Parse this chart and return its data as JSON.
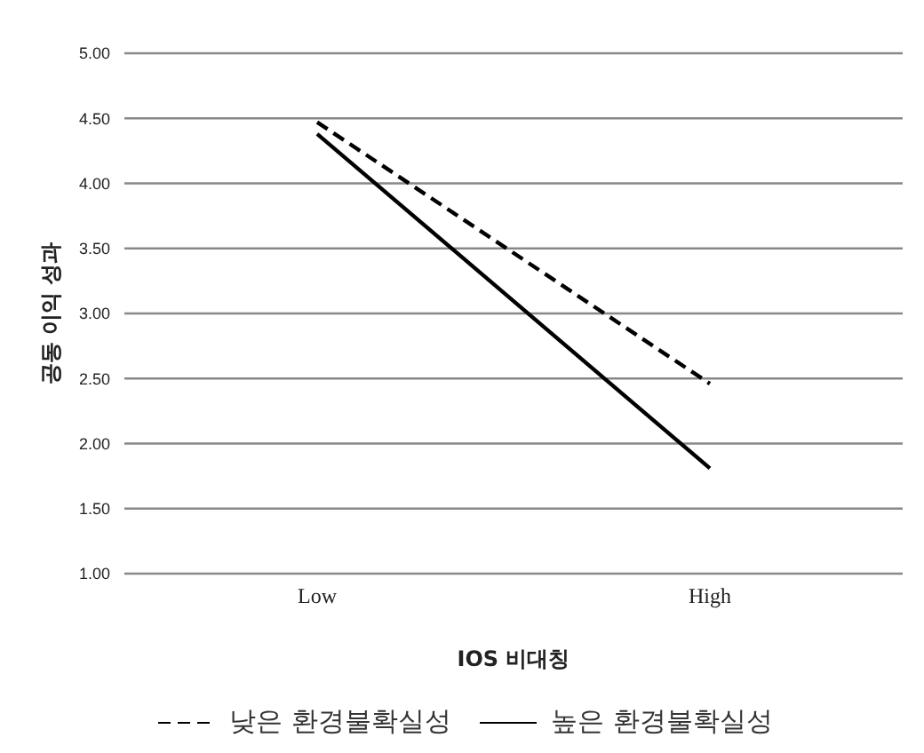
{
  "chart_data": {
    "type": "line",
    "xlabel": "IOS 비대칭",
    "ylabel": "공동 이익 성과",
    "categories": [
      "Low",
      "High"
    ],
    "series": [
      {
        "name": "낮은 환경불확실성",
        "color": "#000000",
        "line_style": "dashed",
        "values": [
          4.47,
          2.46
        ]
      },
      {
        "name": "높은 환경불확실성",
        "color": "#000000",
        "line_style": "solid",
        "values": [
          4.38,
          1.81
        ]
      }
    ],
    "ylim": [
      1.0,
      5.0
    ],
    "yticks": [
      {
        "value": 1.0,
        "label": "1.00"
      },
      {
        "value": 1.5,
        "label": "1.50"
      },
      {
        "value": 2.0,
        "label": "2.00"
      },
      {
        "value": 2.5,
        "label": "2.50"
      },
      {
        "value": 3.0,
        "label": "3.00"
      },
      {
        "value": 3.5,
        "label": "3.50"
      },
      {
        "value": 4.0,
        "label": "4.00"
      },
      {
        "value": 4.5,
        "label": "4.50"
      },
      {
        "value": 5.0,
        "label": "5.00"
      }
    ],
    "grid": "y",
    "legend": "bottom",
    "marker": "none"
  }
}
